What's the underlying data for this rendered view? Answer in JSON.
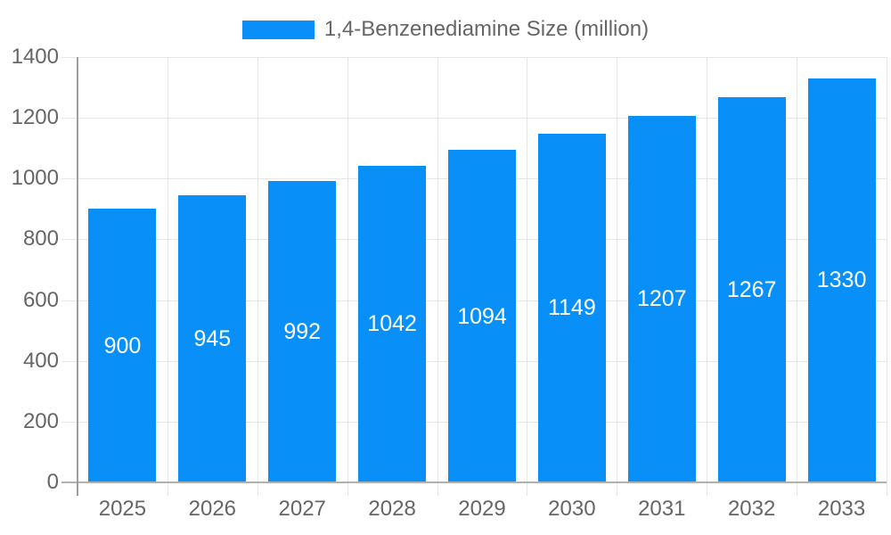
{
  "chart_data": {
    "type": "bar",
    "title": "",
    "categories": [
      "2025",
      "2026",
      "2027",
      "2028",
      "2029",
      "2030",
      "2031",
      "2032",
      "2033"
    ],
    "series": [
      {
        "name": "1,4-Benzenediamine Size (million)",
        "values": [
          900,
          945,
          992,
          1042,
          1094,
          1149,
          1207,
          1267,
          1330
        ]
      }
    ],
    "value_labels": [
      "900",
      "945",
      "992",
      "1042",
      "1094",
      "1149",
      "1207",
      "1267",
      "1330"
    ],
    "yticks": [
      0,
      200,
      400,
      600,
      800,
      1000,
      1200,
      1400
    ],
    "ytick_labels": [
      "0",
      "200",
      "400",
      "600",
      "800",
      "1000",
      "1200",
      "1400"
    ],
    "ylim": [
      0,
      1400
    ],
    "xlabel": "",
    "ylabel": "",
    "grid": "on",
    "legend_position": "top-center",
    "colors": {
      "bar": "#0890F8",
      "grid_line": "#e6e6e6",
      "axis_line": "#9e9e9e",
      "baseline": "#b0b0b0",
      "axis_text": "#666666",
      "bar_value_text": "#ffffff",
      "background": "#ffffff"
    }
  }
}
